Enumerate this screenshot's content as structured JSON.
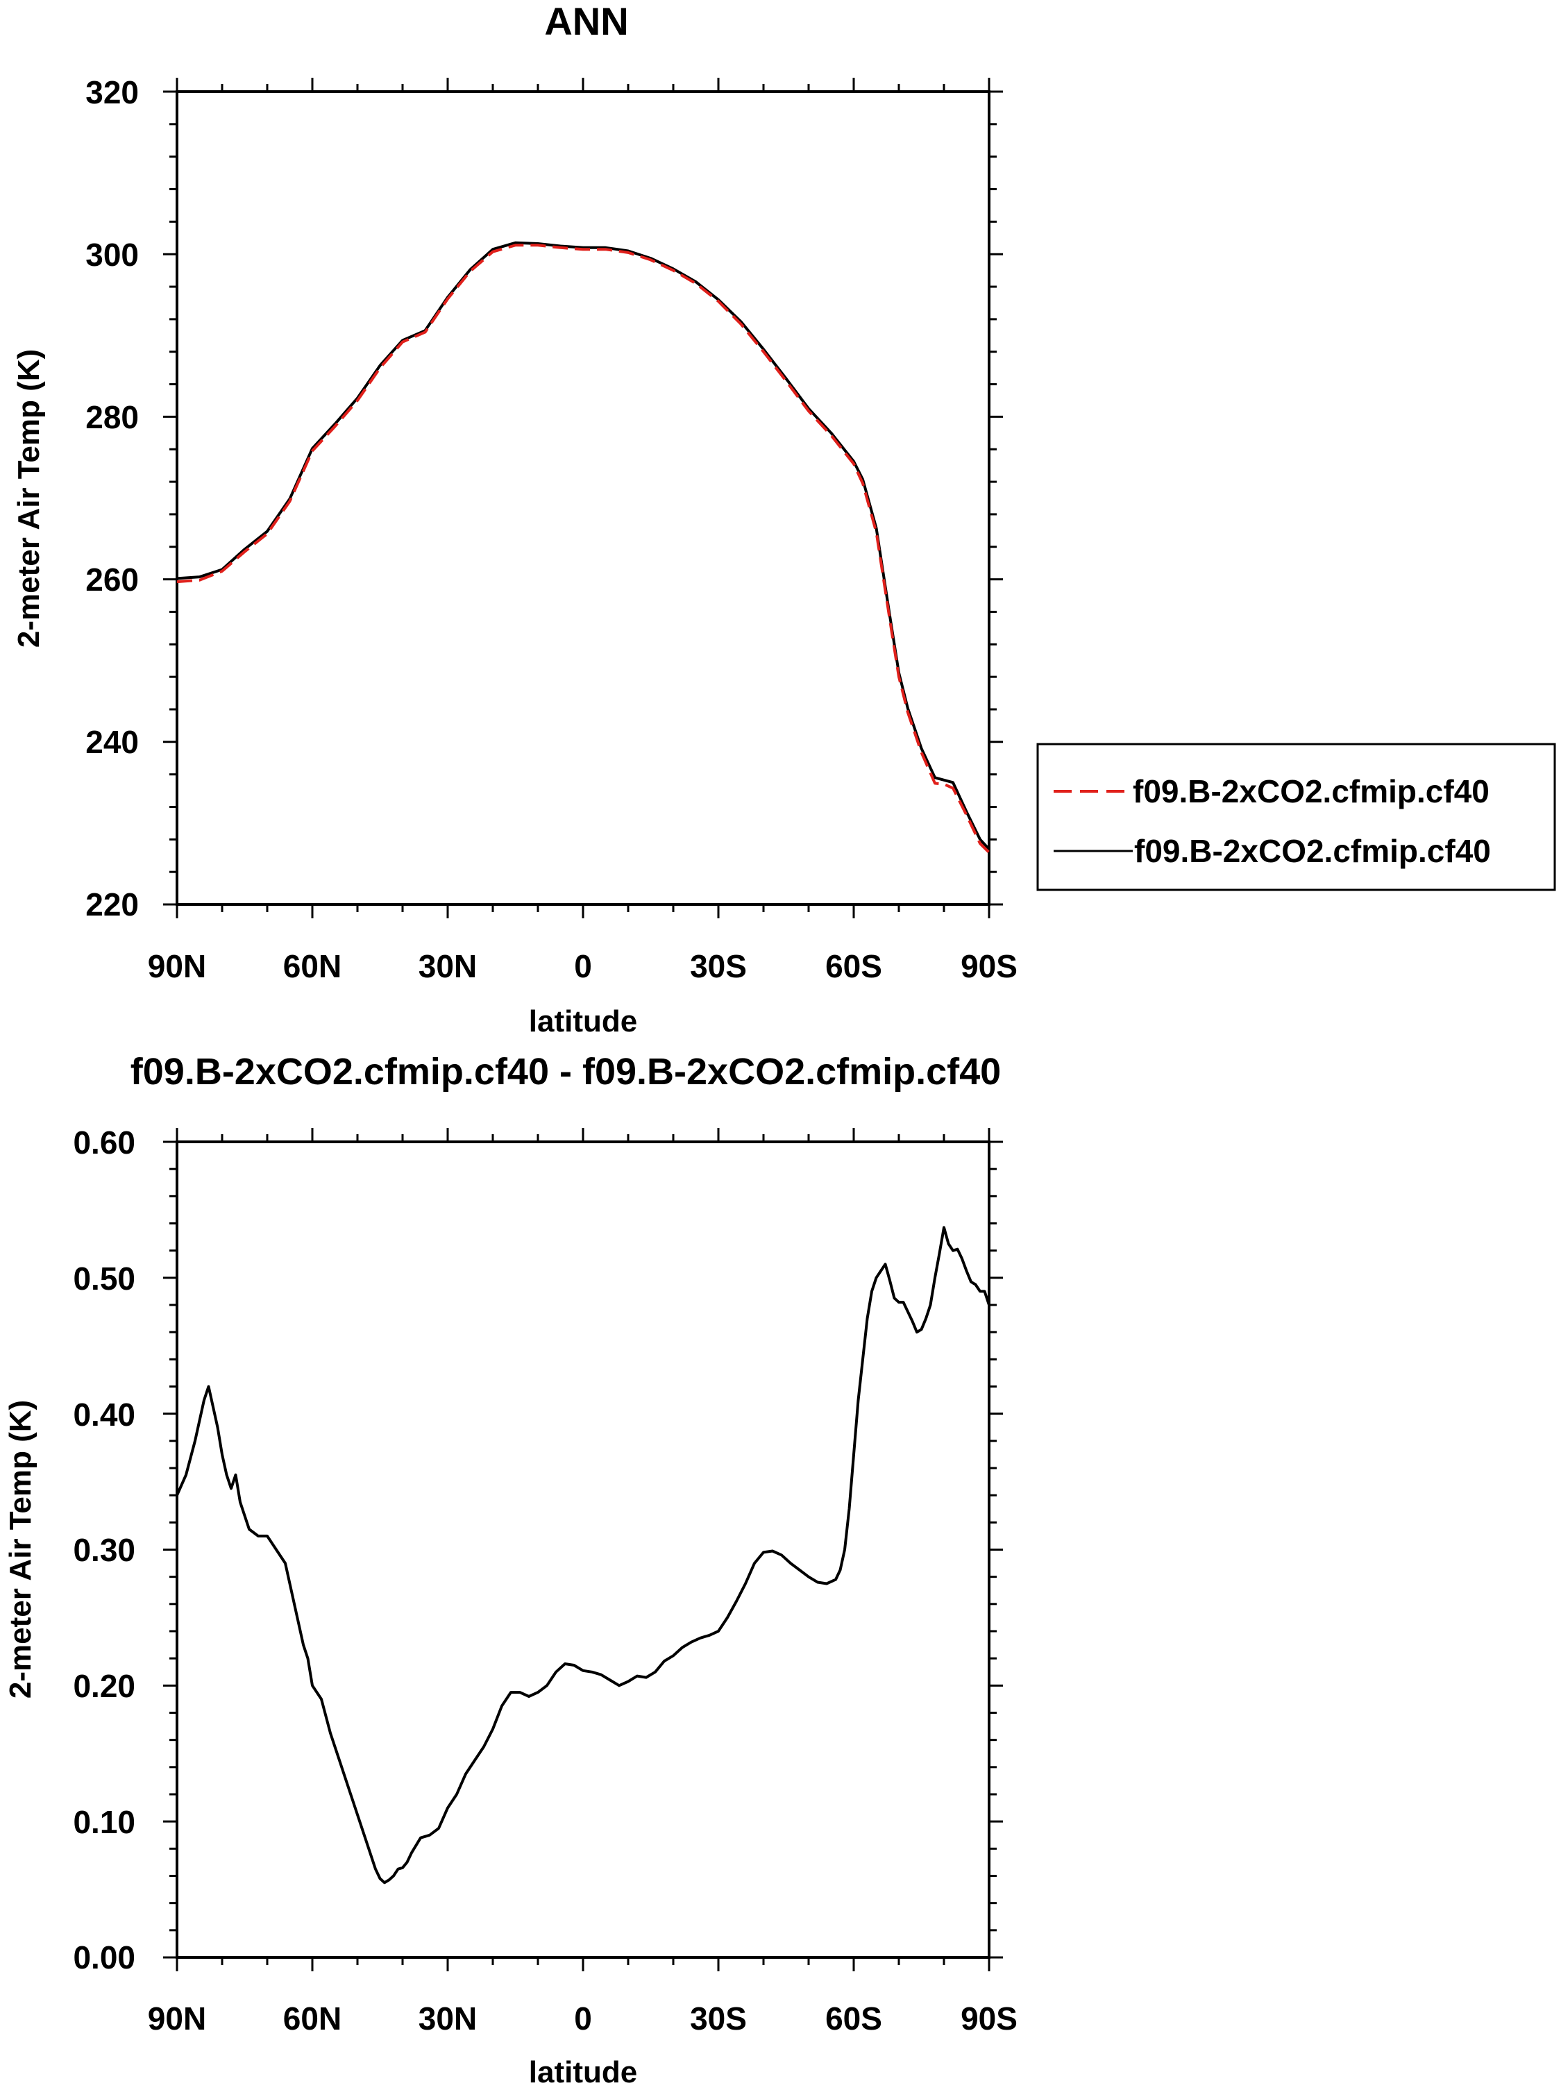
{
  "chart_data": [
    {
      "type": "line",
      "title": "ANN",
      "xlabel": "latitude",
      "ylabel": "2-meter Air Temp (K)",
      "x_tick_labels": [
        "90N",
        "60N",
        "30N",
        "0",
        "30S",
        "60S",
        "90S"
      ],
      "y_tick_labels": [
        "220",
        "240",
        "260",
        "280",
        "300",
        "320"
      ],
      "xlim": [
        90,
        -90
      ],
      "ylim": [
        220,
        320
      ],
      "grid": false,
      "legend_position": "right",
      "series": [
        {
          "name": "f09.B-2xCO2.cfmip.cf40",
          "color": "#e0201b",
          "dash": "dashed",
          "x": [
            90,
            85,
            80,
            75,
            70,
            65,
            60,
            55,
            50,
            45,
            40,
            35,
            30,
            25,
            20,
            15,
            10,
            5,
            0,
            -5,
            -10,
            -15,
            -20,
            -25,
            -30,
            -35,
            -40,
            -45,
            -50,
            -55,
            -60,
            -62,
            -65,
            -68,
            -70,
            -72,
            -75,
            -78,
            -80,
            -82,
            -85,
            -88,
            -90
          ],
          "y": [
            259.7,
            259.9,
            261.0,
            263.4,
            265.6,
            269.6,
            275.8,
            278.8,
            282.0,
            286.0,
            289.2,
            290.4,
            294.5,
            297.9,
            300.3,
            301.1,
            301.1,
            300.8,
            300.6,
            300.6,
            300.2,
            299.3,
            298.0,
            296.4,
            294.2,
            291.4,
            288.0,
            284.4,
            280.7,
            277.7,
            274.2,
            271.8,
            265.8,
            255.0,
            248.0,
            243.6,
            238.7,
            234.9,
            234.8,
            234.3,
            231.0,
            227.5,
            226.4
          ]
        },
        {
          "name": "f09.B-2xCO2.cfmip.cf40",
          "color": "#000000",
          "dash": "solid",
          "x": [
            90,
            85,
            80,
            75,
            70,
            65,
            60,
            55,
            50,
            45,
            40,
            35,
            30,
            25,
            20,
            15,
            10,
            5,
            0,
            -5,
            -10,
            -15,
            -20,
            -25,
            -30,
            -35,
            -40,
            -45,
            -50,
            -55,
            -60,
            -62,
            -65,
            -68,
            -70,
            -72,
            -75,
            -78,
            -80,
            -82,
            -85,
            -88,
            -90
          ],
          "y": [
            260.1,
            260.3,
            261.2,
            263.7,
            265.9,
            269.9,
            276.1,
            279.1,
            282.3,
            286.3,
            289.4,
            290.6,
            294.7,
            298.1,
            300.6,
            301.4,
            301.3,
            301.0,
            300.8,
            300.8,
            300.4,
            299.5,
            298.2,
            296.6,
            294.4,
            291.7,
            288.3,
            284.7,
            281.0,
            278.0,
            274.5,
            272.3,
            266.3,
            255.5,
            248.5,
            244.1,
            239.2,
            235.6,
            235.3,
            235.0,
            231.4,
            228.0,
            226.8
          ]
        }
      ]
    },
    {
      "type": "line",
      "title": "f09.B-2xCO2.cfmip.cf40 - f09.B-2xCO2.cfmip.cf40",
      "xlabel": "latitude",
      "ylabel": "2-meter Air Temp (K)",
      "x_tick_labels": [
        "90N",
        "60N",
        "30N",
        "0",
        "30S",
        "60S",
        "90S"
      ],
      "y_tick_labels": [
        "0.00",
        "0.10",
        "0.20",
        "0.30",
        "0.40",
        "0.50",
        "0.60"
      ],
      "xlim": [
        90,
        -90
      ],
      "ylim": [
        0,
        0.6
      ],
      "grid": false,
      "series": [
        {
          "color": "#000000",
          "dash": "solid",
          "x": [
            90,
            88,
            86,
            84,
            83,
            82,
            81,
            80,
            79,
            78,
            77,
            76,
            74,
            72,
            70,
            69,
            68,
            66,
            64,
            62,
            61,
            60,
            58,
            56,
            54,
            52,
            50,
            48,
            46,
            45,
            44,
            43,
            42,
            41,
            40,
            39,
            38,
            36,
            34,
            32,
            30,
            28,
            26,
            24,
            22,
            20,
            18,
            16,
            14,
            12,
            10,
            8,
            6,
            4,
            2,
            0,
            -2,
            -4,
            -6,
            -8,
            -10,
            -12,
            -14,
            -16,
            -18,
            -20,
            -22,
            -24,
            -26,
            -28,
            -30,
            -32,
            -34,
            -36,
            -38,
            -40,
            -42,
            -44,
            -46,
            -48,
            -50,
            -52,
            -54,
            -56,
            -57,
            -58,
            -59,
            -60,
            -61,
            -62,
            -63,
            -64,
            -65,
            -66,
            -67,
            -68,
            -69,
            -70,
            -71,
            -72,
            -73,
            -74,
            -75,
            -76,
            -77,
            -78,
            -79,
            -80,
            -81,
            -82,
            -83,
            -84,
            -85,
            -86,
            -87,
            -88,
            -89,
            -90
          ],
          "y": [
            0.34,
            0.355,
            0.38,
            0.41,
            0.42,
            0.405,
            0.39,
            0.37,
            0.355,
            0.345,
            0.355,
            0.335,
            0.315,
            0.31,
            0.31,
            0.305,
            0.3,
            0.29,
            0.26,
            0.23,
            0.22,
            0.2,
            0.19,
            0.165,
            0.145,
            0.125,
            0.105,
            0.085,
            0.065,
            0.058,
            0.055,
            0.057,
            0.06,
            0.065,
            0.066,
            0.07,
            0.077,
            0.088,
            0.09,
            0.095,
            0.11,
            0.12,
            0.135,
            0.145,
            0.155,
            0.168,
            0.185,
            0.195,
            0.195,
            0.192,
            0.195,
            0.2,
            0.21,
            0.216,
            0.215,
            0.211,
            0.21,
            0.208,
            0.204,
            0.2,
            0.203,
            0.207,
            0.206,
            0.21,
            0.218,
            0.222,
            0.228,
            0.232,
            0.235,
            0.237,
            0.24,
            0.25,
            0.262,
            0.275,
            0.29,
            0.298,
            0.299,
            0.296,
            0.29,
            0.285,
            0.28,
            0.276,
            0.275,
            0.278,
            0.285,
            0.3,
            0.33,
            0.37,
            0.41,
            0.44,
            0.47,
            0.49,
            0.5,
            0.505,
            0.51,
            0.498,
            0.485,
            0.482,
            0.482,
            0.475,
            0.468,
            0.46,
            0.462,
            0.47,
            0.48,
            0.5,
            0.518,
            0.537,
            0.525,
            0.52,
            0.521,
            0.514,
            0.505,
            0.497,
            0.495,
            0.49,
            0.49,
            0.48
          ]
        }
      ]
    }
  ]
}
